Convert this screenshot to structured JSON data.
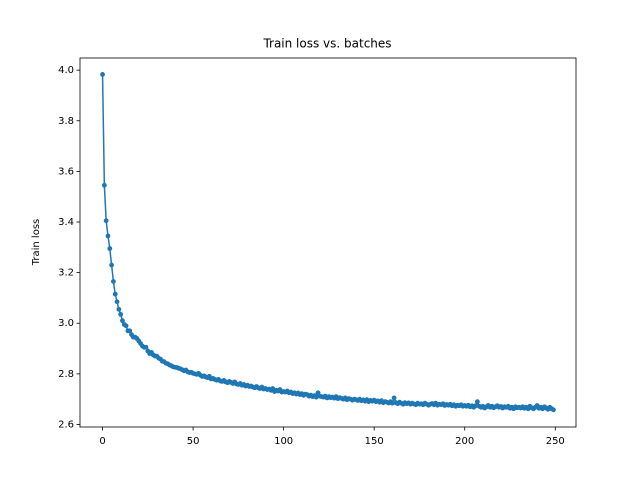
{
  "chart_data": {
    "type": "line",
    "title": "Train loss vs. batches",
    "y_label": "Train loss",
    "color": "#1f77b4",
    "marker": true,
    "xlim": [
      -12.45,
      261.45
    ],
    "ylim": [
      2.59,
      4.048
    ],
    "xticks": [
      0,
      50,
      100,
      150,
      200,
      250
    ],
    "yticks": [
      2.6,
      2.8,
      {
        "value": 3.0,
        "label": "3.0"
      },
      3.2,
      3.4,
      3.6,
      3.8,
      {
        "value": 4.0,
        "label": "4.0"
      }
    ],
    "x": [
      0,
      1,
      2,
      3,
      4,
      5,
      6,
      7,
      8,
      9,
      10,
      11,
      12,
      13,
      14,
      15,
      16,
      17,
      18,
      19,
      20,
      21,
      22,
      23,
      24,
      25,
      26,
      27,
      28,
      29,
      30,
      31,
      32,
      33,
      34,
      35,
      36,
      37,
      38,
      39,
      40,
      41,
      42,
      43,
      44,
      45,
      46,
      47,
      48,
      49,
      50,
      51,
      52,
      53,
      54,
      55,
      56,
      57,
      58,
      59,
      60,
      61,
      62,
      63,
      64,
      65,
      66,
      67,
      68,
      69,
      70,
      71,
      72,
      73,
      74,
      75,
      76,
      77,
      78,
      79,
      80,
      81,
      82,
      83,
      84,
      85,
      86,
      87,
      88,
      89,
      90,
      91,
      92,
      93,
      94,
      95,
      96,
      97,
      98,
      99,
      100,
      101,
      102,
      103,
      104,
      105,
      106,
      107,
      108,
      109,
      110,
      111,
      112,
      113,
      114,
      115,
      116,
      117,
      118,
      119,
      120,
      121,
      122,
      123,
      124,
      125,
      126,
      127,
      128,
      129,
      130,
      131,
      132,
      133,
      134,
      135,
      136,
      137,
      138,
      139,
      140,
      141,
      142,
      143,
      144,
      145,
      146,
      147,
      148,
      149,
      150,
      151,
      152,
      153,
      154,
      155,
      156,
      157,
      158,
      159,
      160,
      161,
      162,
      163,
      164,
      165,
      166,
      167,
      168,
      169,
      170,
      171,
      172,
      173,
      174,
      175,
      176,
      177,
      178,
      179,
      180,
      181,
      182,
      183,
      184,
      185,
      186,
      187,
      188,
      189,
      190,
      191,
      192,
      193,
      194,
      195,
      196,
      197,
      198,
      199,
      200,
      201,
      202,
      203,
      204,
      205,
      206,
      207,
      208,
      209,
      210,
      211,
      212,
      213,
      214,
      215,
      216,
      217,
      218,
      219,
      220,
      221,
      222,
      223,
      224,
      225,
      226,
      227,
      228,
      229,
      230,
      231,
      232,
      233,
      234,
      235,
      236,
      237,
      238,
      239,
      240,
      241,
      242,
      243,
      244,
      245,
      246,
      247,
      248,
      249
    ],
    "values": [
      3.983,
      3.545,
      3.405,
      3.345,
      3.295,
      3.23,
      3.165,
      3.115,
      3.085,
      3.055,
      3.035,
      3.01,
      2.995,
      2.99,
      2.97,
      2.97,
      2.955,
      2.945,
      2.945,
      2.94,
      2.93,
      2.92,
      2.91,
      2.905,
      2.905,
      2.89,
      2.88,
      2.885,
      2.875,
      2.87,
      2.87,
      2.862,
      2.858,
      2.85,
      2.848,
      2.842,
      2.84,
      2.835,
      2.832,
      2.828,
      2.826,
      2.825,
      2.822,
      2.82,
      2.816,
      2.812,
      2.815,
      2.808,
      2.805,
      2.806,
      2.802,
      2.8,
      2.798,
      2.802,
      2.795,
      2.79,
      2.792,
      2.788,
      2.785,
      2.79,
      2.78,
      2.782,
      2.778,
      2.775,
      2.778,
      2.772,
      2.77,
      2.774,
      2.768,
      2.765,
      2.77,
      2.766,
      2.762,
      2.768,
      2.76,
      2.758,
      2.762,
      2.755,
      2.758,
      2.752,
      2.755,
      2.75,
      2.752,
      2.748,
      2.745,
      2.75,
      2.745,
      2.742,
      2.748,
      2.74,
      2.742,
      2.738,
      2.74,
      2.735,
      2.742,
      2.73,
      2.735,
      2.732,
      2.738,
      2.728,
      2.73,
      2.728,
      2.732,
      2.725,
      2.728,
      2.722,
      2.725,
      2.72,
      2.724,
      2.718,
      2.722,
      2.715,
      2.72,
      2.718,
      2.712,
      2.716,
      2.71,
      2.714,
      2.708,
      2.725,
      2.712,
      2.71,
      2.708,
      2.712,
      2.705,
      2.71,
      2.706,
      2.708,
      2.704,
      2.71,
      2.702,
      2.706,
      2.703,
      2.7,
      2.705,
      2.698,
      2.702,
      2.7,
      2.696,
      2.7,
      2.698,
      2.695,
      2.7,
      2.694,
      2.697,
      2.692,
      2.698,
      2.69,
      2.695,
      2.692,
      2.696,
      2.69,
      2.693,
      2.688,
      2.694,
      2.686,
      2.69,
      2.688,
      2.685,
      2.69,
      2.684,
      2.705,
      2.686,
      2.682,
      2.688,
      2.684,
      2.68,
      2.686,
      2.682,
      2.685,
      2.68,
      2.684,
      2.681,
      2.678,
      2.684,
      2.68,
      2.682,
      2.678,
      2.684,
      2.68,
      2.676,
      2.68,
      2.683,
      2.678,
      2.684,
      2.676,
      2.68,
      2.678,
      2.682,
      2.675,
      2.679,
      2.676,
      2.68,
      2.674,
      2.678,
      2.672,
      2.676,
      2.674,
      2.678,
      2.672,
      2.675,
      2.672,
      2.676,
      2.67,
      2.674,
      2.668,
      2.674,
      2.69,
      2.672,
      2.668,
      2.672,
      2.665,
      2.67,
      2.675,
      2.668,
      2.672,
      2.666,
      2.67,
      2.674,
      2.668,
      2.671,
      2.665,
      2.67,
      2.668,
      2.672,
      2.664,
      2.668,
      2.662,
      2.67,
      2.666,
      2.668,
      2.665,
      2.67,
      2.664,
      2.668,
      2.662,
      2.672,
      2.666,
      2.662,
      2.668,
      2.675,
      2.664,
      2.668,
      2.662,
      2.67,
      2.665,
      2.66,
      2.668,
      2.662,
      2.658
    ]
  }
}
